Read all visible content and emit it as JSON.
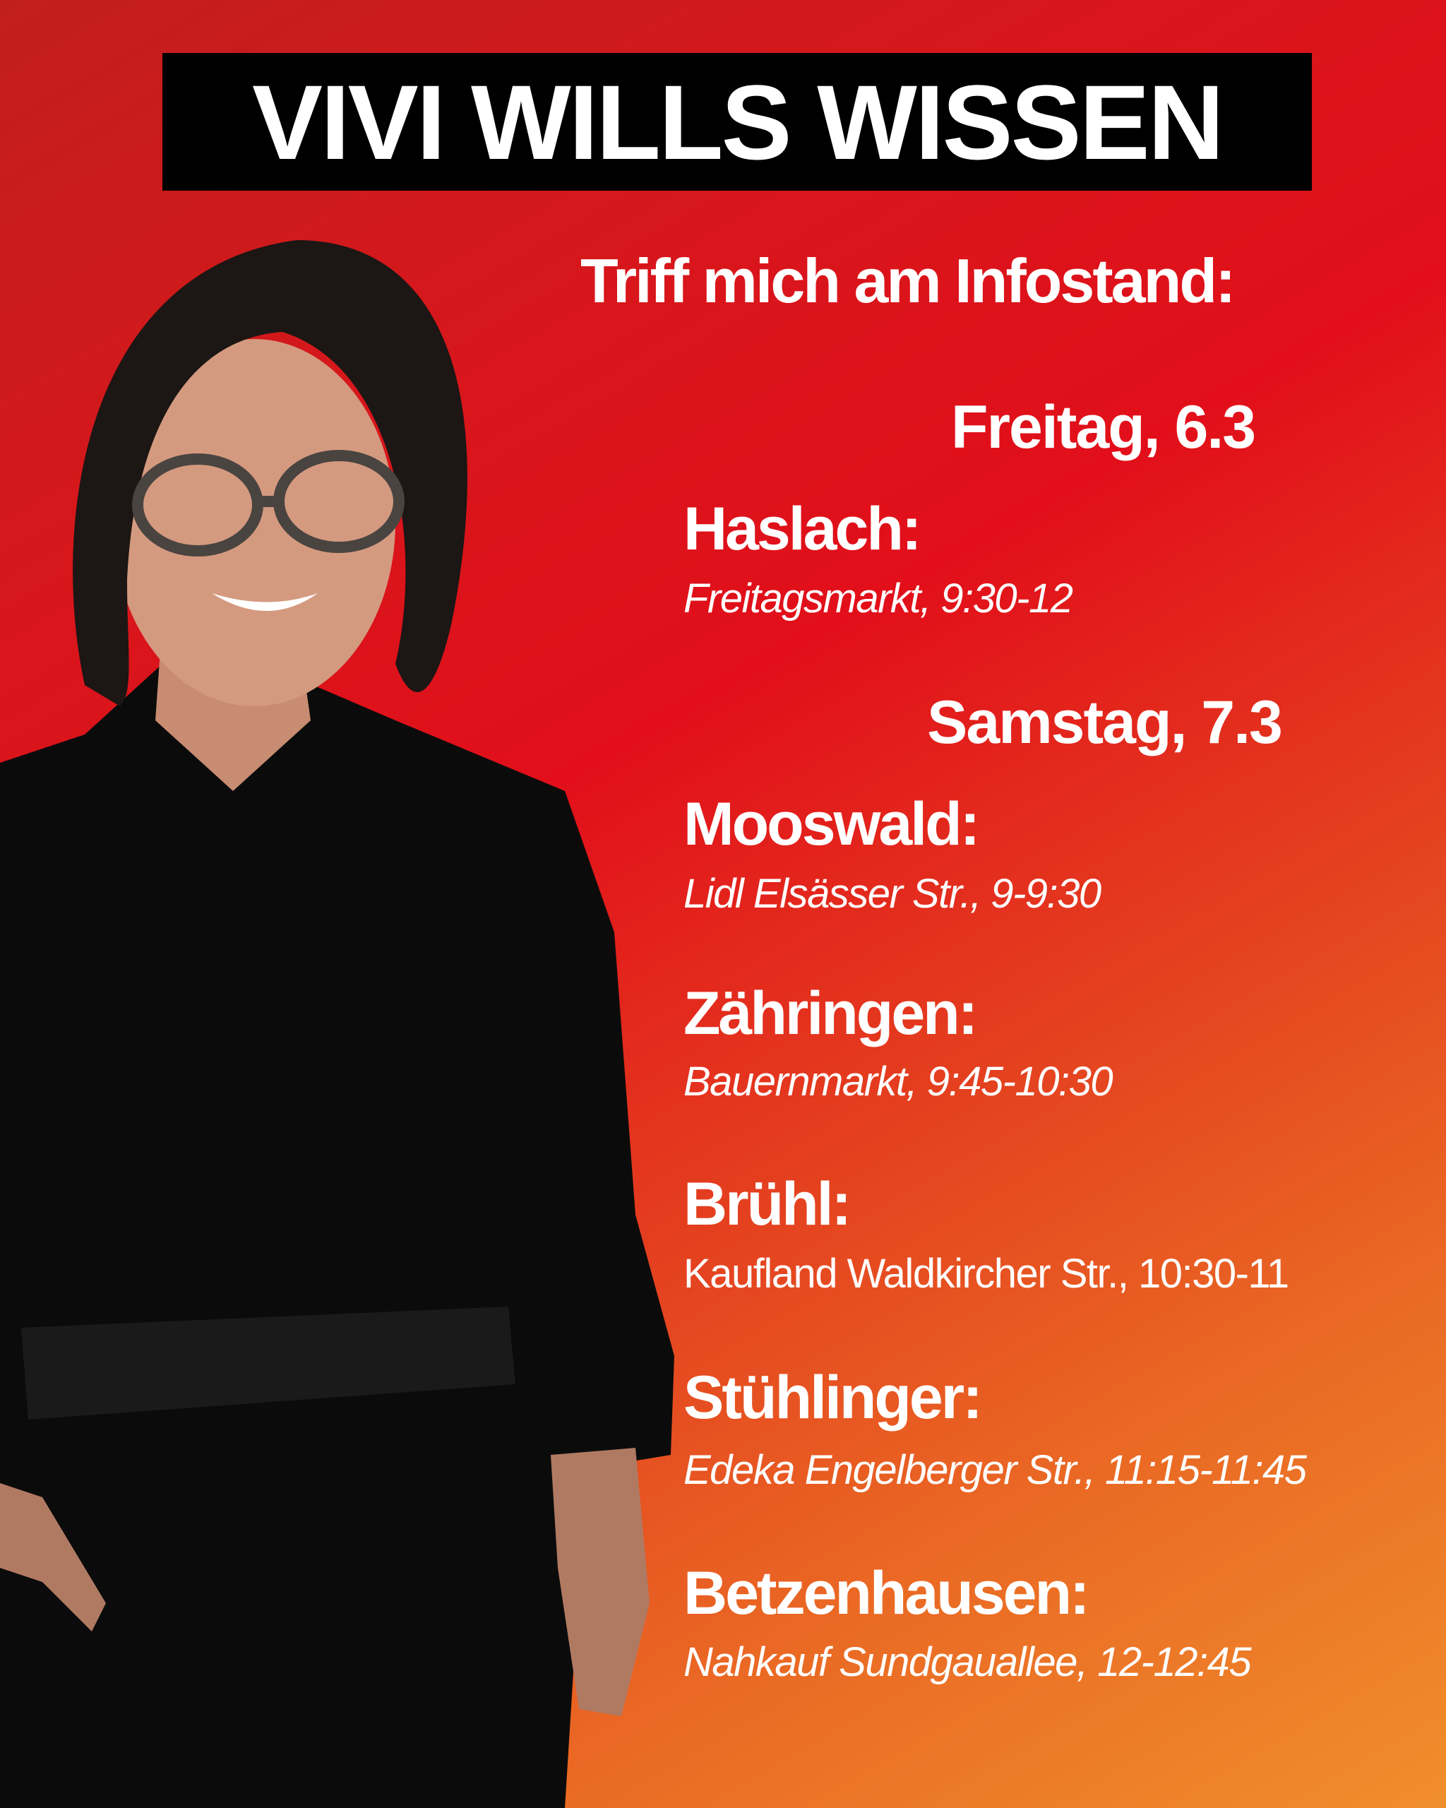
{
  "title": "VIVI WILLS WISSEN",
  "intro": "Triff mich am Infostand:",
  "days": [
    {
      "label": "Freitag, 6.3",
      "stops": [
        {
          "place": "Haslach:",
          "detail": "Freitagsmarkt, 9:30-12"
        }
      ]
    },
    {
      "label": "Samstag, 7.3",
      "stops": [
        {
          "place": "Mooswald:",
          "detail": "Lidl Elsässer Str., 9-9:30"
        },
        {
          "place": "Zähringen:",
          "detail": "Bauernmarkt, 9:45-10:30"
        },
        {
          "place": "Brühl:",
          "detail": "Kaufland Waldkircher Str., 10:30-11"
        },
        {
          "place": "Stühlinger:",
          "detail": "Edeka Engelberger Str., 11:15-11:45"
        },
        {
          "place": "Betzenhausen:",
          "detail": "Nahkauf Sundgauallee, 12-12:45"
        }
      ]
    }
  ],
  "colors": {
    "gradient_start": "#c21f1c",
    "gradient_mid": "#e20f1a",
    "gradient_end": "#f08e2c",
    "title_bg": "#000000",
    "text": "#ffffff"
  }
}
